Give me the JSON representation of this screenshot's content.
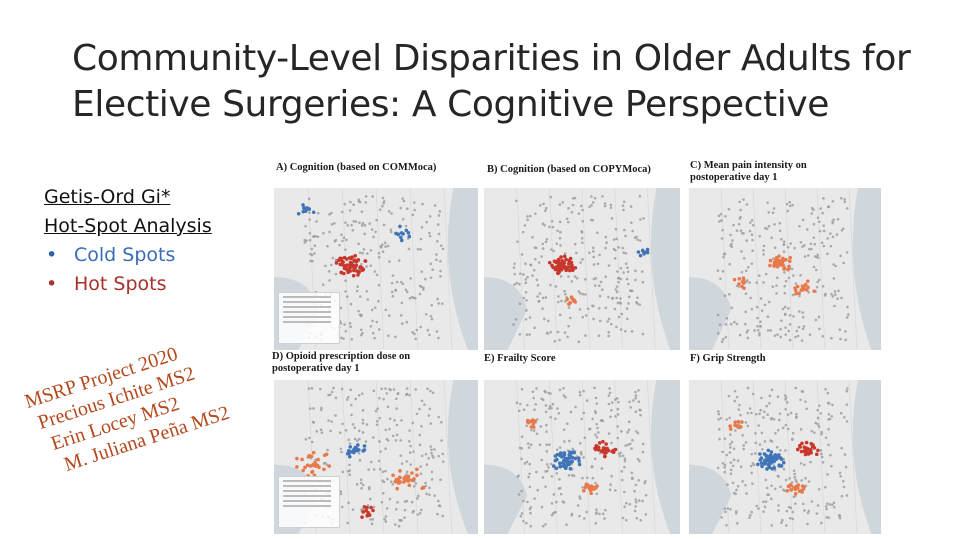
{
  "slide": {
    "title": "Community-Level Disparities in Older Adults for Elective Surgeries: A Cognitive Perspective"
  },
  "legend": {
    "heading_line1": "Getis-Ord Gi*",
    "heading_line2": "Hot-Spot Analysis",
    "items": [
      {
        "label": "Cold Spots",
        "color": "#3a6db3"
      },
      {
        "label": "Hot Spots",
        "color": "#a8322b"
      }
    ]
  },
  "credits": {
    "color": "#b5481c",
    "lines": [
      "MSRP Project 2020",
      "Precious Ichite MS2",
      "Erin Locey MS2",
      "M. Juliana Peña MS2"
    ]
  },
  "panels": [
    {
      "id": "A",
      "label": "A) Cognition (based on COMMoca)",
      "hotspot": "cold-red"
    },
    {
      "id": "B",
      "label": "B) Cognition (based on COPYMoca)",
      "hotspot": "red"
    },
    {
      "id": "C",
      "label": "C)  Mean pain intensity on postoperative day 1",
      "hotspot": "orange"
    },
    {
      "id": "D",
      "label": "D) Opioid prescription dose on postoperative day 1",
      "hotspot": "orange-blue"
    },
    {
      "id": "E",
      "label": "E) Frailty Score",
      "hotspot": "blue-red"
    },
    {
      "id": "F",
      "label": "F) Grip Strength",
      "hotspot": "blue-red"
    }
  ],
  "colors": {
    "hot": "#c9372c",
    "warm": "#e8794a",
    "cold": "#3f74b8",
    "neutral": "#9a9a9a",
    "land": "#ececec",
    "water": "#cfd6dc"
  }
}
